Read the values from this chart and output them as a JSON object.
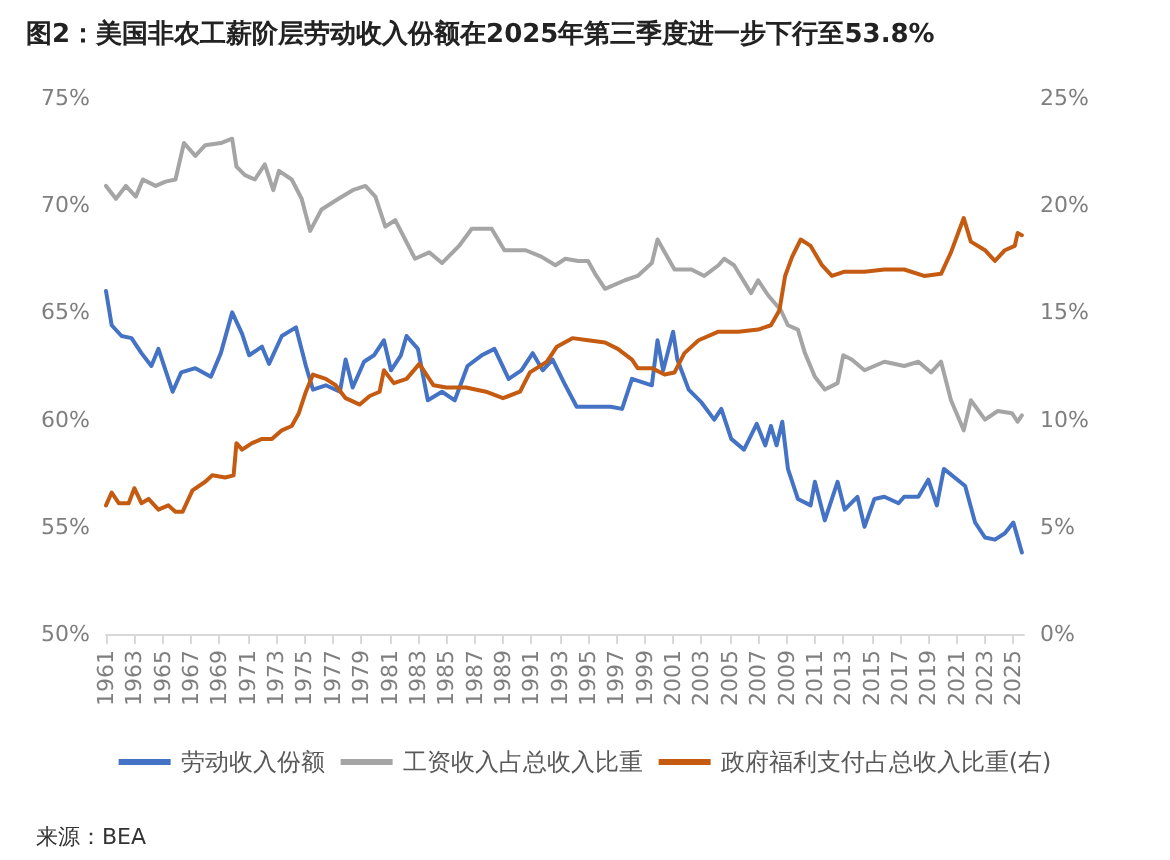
{
  "chart_data": {
    "type": "line",
    "title": "图2：美国非农工薪阶层劳动收入份额在2025年第三季度进一步下行至53.8%",
    "annotations": [
      "来源：BEA"
    ],
    "xlim": [
      1961,
      2025.75
    ],
    "xticks": [
      1961,
      1963,
      1965,
      1967,
      1969,
      1971,
      1973,
      1975,
      1977,
      1979,
      1981,
      1983,
      1985,
      1987,
      1989,
      1991,
      1993,
      1995,
      1997,
      1999,
      2001,
      2003,
      2005,
      2007,
      2009,
      2011,
      2013,
      2015,
      2017,
      2019,
      2021,
      2023,
      2025
    ],
    "ylim": [
      50,
      75
    ],
    "yticks": [
      {
        "value": 50,
        "label": "50%"
      },
      {
        "value": 55,
        "label": "55%"
      },
      {
        "value": 60,
        "label": "60%"
      },
      {
        "value": 65,
        "label": "65%"
      },
      {
        "value": 70,
        "label": "70%"
      },
      {
        "value": 75,
        "label": "75%"
      }
    ],
    "y2lim": [
      0,
      25
    ],
    "y2ticks": [
      {
        "value": 0,
        "label": "0%"
      },
      {
        "value": 5,
        "label": "5%"
      },
      {
        "value": 10,
        "label": "10%"
      },
      {
        "value": 15,
        "label": "15%"
      },
      {
        "value": 20,
        "label": "20%"
      },
      {
        "value": 25,
        "label": "25%"
      }
    ],
    "grid": false,
    "legend": "bottom",
    "marker": "none",
    "line_style": "solid",
    "series": [
      {
        "name": "劳动收入份额",
        "color": "#4472c4",
        "x": [
          1961,
          1961.4,
          1962.1,
          1962.8,
          1963.5,
          1964.2,
          1964.7,
          1965.2,
          1965.7,
          1966.3,
          1967.3,
          1968.4,
          1969.1,
          1969.9,
          1970.6,
          1971.1,
          1972.0,
          1972.5,
          1973.4,
          1974.4,
          1975.1,
          1975.6,
          1976.5,
          1977.5,
          1977.9,
          1978.4,
          1979.2,
          1979.9,
          1980.6,
          1981.1,
          1981.8,
          1982.2,
          1983.0,
          1983.7,
          1984.7,
          1985.6,
          1986.5,
          1987.5,
          1988.4,
          1989.4,
          1990.3,
          1991.1,
          1991.8,
          1992.5,
          1993.4,
          1994.2,
          1995.2,
          1996.6,
          1997.4,
          1998.1,
          1999.5,
          1999.9,
          2000.3,
          2001.0,
          2001.3,
          2002.1,
          2003.0,
          2003.9,
          2004.4,
          2005.1,
          2006.0,
          2006.9,
          2007.5,
          2007.9,
          2008.3,
          2008.7,
          2009.1,
          2009.8,
          2010.7,
          2011.0,
          2011.7,
          2012.6,
          2013.1,
          2014.0,
          2014.5,
          2015.2,
          2015.9,
          2016.9,
          2017.3,
          2018.3,
          2019.0,
          2019.6,
          2020.1,
          2021.6,
          2022.3,
          2023.0,
          2023.7,
          2024.4,
          2025.0,
          2025.6
        ],
        "values": [
          66.0,
          64.4,
          63.9,
          63.8,
          63.1,
          62.5,
          63.3,
          62.3,
          61.3,
          62.2,
          62.4,
          62.0,
          63.1,
          65.0,
          64.0,
          63.0,
          63.4,
          62.6,
          63.9,
          64.3,
          62.5,
          61.4,
          61.6,
          61.3,
          62.8,
          61.5,
          62.7,
          63.0,
          63.7,
          62.3,
          63.0,
          63.9,
          63.3,
          60.9,
          61.3,
          60.9,
          62.5,
          63.0,
          63.3,
          61.9,
          62.3,
          63.1,
          62.3,
          62.8,
          61.6,
          60.6,
          60.6,
          60.6,
          60.5,
          61.9,
          61.6,
          63.7,
          62.3,
          64.1,
          62.8,
          61.4,
          60.8,
          60.0,
          60.5,
          59.1,
          58.6,
          59.8,
          58.8,
          59.7,
          58.8,
          59.9,
          57.7,
          56.3,
          56.0,
          57.1,
          55.3,
          57.1,
          55.8,
          56.4,
          55.0,
          56.3,
          56.4,
          56.1,
          56.4,
          56.4,
          57.2,
          56.0,
          57.7,
          56.9,
          55.2,
          54.5,
          54.4,
          54.7,
          55.2,
          53.8
        ]
      },
      {
        "name": "工资收入占总收入比重",
        "color": "#a5a5a5",
        "x": [
          1961,
          1961.7,
          1962.4,
          1963.1,
          1963.6,
          1964.5,
          1965.2,
          1965.9,
          1966.5,
          1967.3,
          1968.0,
          1969.1,
          1969.9,
          1970.2,
          1970.8,
          1971.5,
          1972.2,
          1972.8,
          1973.2,
          1974.1,
          1974.8,
          1975.4,
          1976.2,
          1977.4,
          1978.4,
          1979.3,
          1980.0,
          1980.7,
          1981.4,
          1982.1,
          1982.8,
          1983.8,
          1984.7,
          1985.9,
          1986.8,
          1988.2,
          1989.1,
          1990.6,
          1991.7,
          1992.7,
          1993.4,
          1994.3,
          1995.0,
          1995.5,
          1996.2,
          1997.6,
          1998.5,
          1999.5,
          1999.9,
          2001.1,
          2002.3,
          2003.2,
          2004.2,
          2004.6,
          2005.3,
          2006.5,
          2007.0,
          2007.7,
          2008.6,
          2009.1,
          2009.8,
          2010.3,
          2011.0,
          2011.7,
          2012.6,
          2013.0,
          2013.6,
          2014.5,
          2015.9,
          2017.3,
          2018.3,
          2019.2,
          2019.9,
          2020.6,
          2021.5,
          2022.0,
          2023.0,
          2023.9,
          2024.9,
          2025.3,
          2025.6
        ],
        "values": [
          70.9,
          70.3,
          70.9,
          70.4,
          71.2,
          70.9,
          71.1,
          71.2,
          72.9,
          72.3,
          72.8,
          72.9,
          73.1,
          71.8,
          71.4,
          71.2,
          71.9,
          70.7,
          71.6,
          71.2,
          70.3,
          68.8,
          69.8,
          70.3,
          70.7,
          70.9,
          70.4,
          69.0,
          69.3,
          68.4,
          67.5,
          67.8,
          67.3,
          68.1,
          68.9,
          68.9,
          67.9,
          67.9,
          67.6,
          67.2,
          67.5,
          67.4,
          67.4,
          66.8,
          66.1,
          66.5,
          66.7,
          67.3,
          68.4,
          67.0,
          67.0,
          66.7,
          67.2,
          67.5,
          67.2,
          65.9,
          66.5,
          65.8,
          65.1,
          64.4,
          64.2,
          63.1,
          62.0,
          61.4,
          61.7,
          63.0,
          62.8,
          62.3,
          62.7,
          62.5,
          62.7,
          62.2,
          62.7,
          60.9,
          59.5,
          60.9,
          60.0,
          60.4,
          60.3,
          59.9,
          60.2
        ]
      },
      {
        "name": "政府福利支付占总收入比重(右)",
        "color": "#c55a11",
        "axis": "y2",
        "x": [
          1961,
          1961.4,
          1961.9,
          1962.6,
          1963.0,
          1963.5,
          1964.0,
          1964.7,
          1965.4,
          1965.9,
          1966.4,
          1967.1,
          1968.0,
          1968.5,
          1969.4,
          1970.0,
          1970.2,
          1970.6,
          1971.3,
          1972.0,
          1972.7,
          1973.4,
          1974.1,
          1974.6,
          1975.1,
          1975.6,
          1976.5,
          1977.2,
          1977.9,
          1978.9,
          1979.6,
          1980.3,
          1980.6,
          1981.3,
          1982.2,
          1983.1,
          1984.1,
          1985.0,
          1986.4,
          1987.8,
          1989.0,
          1990.2,
          1990.9,
          1992.1,
          1992.8,
          1993.9,
          1995.0,
          1996.2,
          1997.1,
          1998.1,
          1998.5,
          1999.5,
          2000.4,
          2001.1,
          2001.8,
          2002.8,
          2004.2,
          2005.6,
          2007.0,
          2007.9,
          2008.5,
          2008.9,
          2009.4,
          2010.0,
          2010.7,
          2011.5,
          2012.2,
          2013.1,
          2014.5,
          2015.9,
          2017.3,
          2018.7,
          2019.9,
          2020.6,
          2021.5,
          2022.0,
          2023.0,
          2023.7,
          2024.4,
          2025.1,
          2025.3,
          2025.6
        ],
        "values": [
          6.0,
          6.6,
          6.1,
          6.1,
          6.8,
          6.1,
          6.3,
          5.8,
          6.0,
          5.7,
          5.7,
          6.7,
          7.1,
          7.4,
          7.3,
          7.4,
          8.9,
          8.6,
          8.9,
          9.1,
          9.1,
          9.5,
          9.7,
          10.3,
          11.3,
          12.1,
          11.9,
          11.6,
          11.0,
          10.7,
          11.1,
          11.3,
          12.3,
          11.7,
          11.9,
          12.6,
          11.6,
          11.5,
          11.5,
          11.3,
          11.0,
          11.3,
          12.2,
          12.7,
          13.4,
          13.8,
          13.7,
          13.6,
          13.3,
          12.8,
          12.4,
          12.4,
          12.1,
          12.2,
          13.1,
          13.7,
          14.1,
          14.1,
          14.2,
          14.4,
          15.1,
          16.7,
          17.6,
          18.4,
          18.1,
          17.2,
          16.7,
          16.9,
          16.9,
          17.0,
          17.0,
          16.7,
          16.8,
          17.8,
          19.4,
          18.3,
          17.9,
          17.4,
          17.9,
          18.1,
          18.7,
          18.6
        ]
      }
    ]
  }
}
